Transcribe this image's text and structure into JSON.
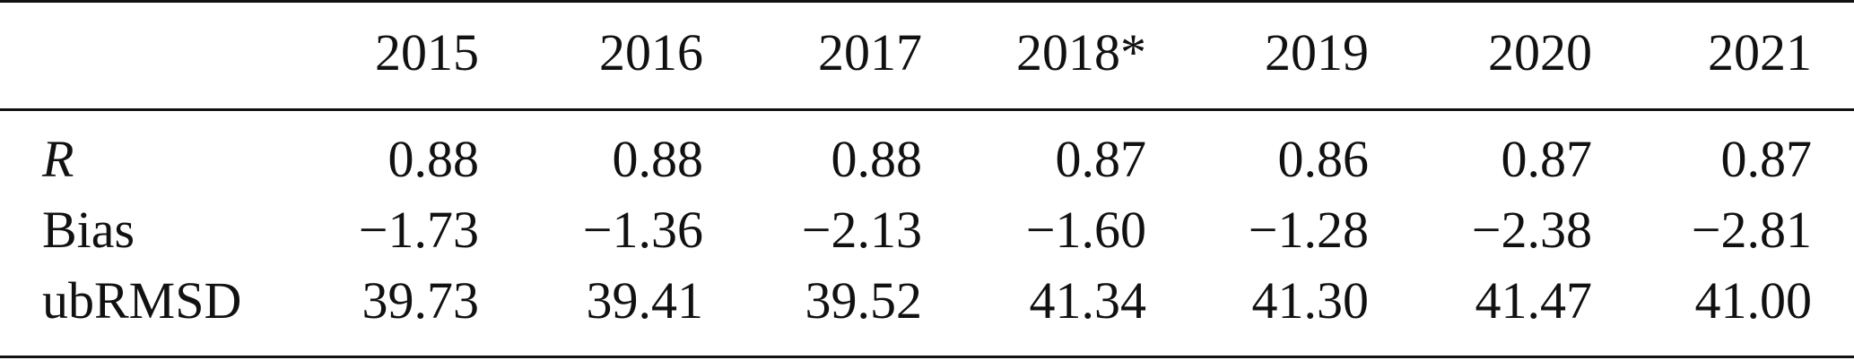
{
  "table": {
    "header": [
      "2015",
      "2016",
      "2017",
      "2018*",
      "2019",
      "2020",
      "2021"
    ],
    "rows": [
      [
        "R",
        "0.88",
        "0.88",
        "0.88",
        "0.87",
        "0.86",
        "0.87",
        "0.87"
      ],
      [
        "Bias",
        "−1.73",
        "−1.36",
        "−2.13",
        "−1.60",
        "−1.28",
        "−2.38",
        "−2.81"
      ],
      [
        "ubRMSD",
        "39.73",
        "39.41",
        "39.52",
        "41.34",
        "41.30",
        "41.47",
        "41.00"
      ]
    ]
  }
}
